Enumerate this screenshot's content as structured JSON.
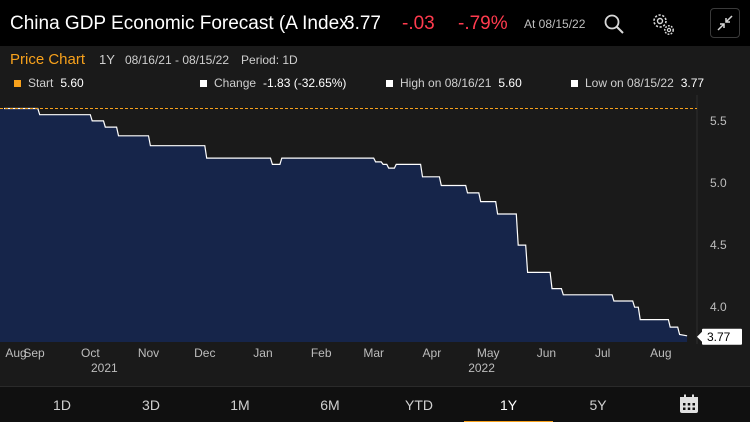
{
  "header": {
    "title": "China GDP Economic Forecast (A Index",
    "last": "3.77",
    "change": "-.03",
    "pct_change": "-.79%",
    "as_of": "At 08/15/22",
    "icons": [
      "search-icon",
      "settings-gears-icon",
      "collapse-icon"
    ]
  },
  "subheader": {
    "title": "Price Chart",
    "range": "1Y",
    "dates": "08/16/21 - 08/15/22",
    "period": "Period: 1D"
  },
  "stats": {
    "start_label": "Start",
    "start_value": "5.60",
    "change_label": "Change",
    "change_value": "-1.83 (-32.65%)",
    "high_label": "High on 08/16/21",
    "high_value": "5.60",
    "low_label": "Low on 08/15/22",
    "low_value": "3.77"
  },
  "colors": {
    "accent": "#f7a11c",
    "negative": "#ff3b4e",
    "area_fill": "#16254a",
    "line": "#ffffff",
    "panel_bg": "#1a1a1a"
  },
  "chart_data": {
    "type": "area",
    "x_tick_labels": [
      "Aug",
      "Sep",
      "Oct",
      "Nov",
      "Dec",
      "Jan",
      "Feb",
      "Mar",
      "Apr",
      "May",
      "Jun",
      "Jul",
      "Aug"
    ],
    "year_labels": [
      "2021",
      "2022"
    ],
    "y_tick_labels": [
      "4.0",
      "4.5",
      "5.0",
      "5.5"
    ],
    "ylim": [
      3.72,
      5.66
    ],
    "last_label": "3.77",
    "start_line_value": 5.6,
    "series": [
      {
        "x": [
          "2021-08-16",
          "2021-09-03",
          "2021-09-04",
          "2021-10-01",
          "2021-10-02",
          "2021-10-08",
          "2021-10-09",
          "2021-10-15",
          "2021-10-16",
          "2021-11-01",
          "2021-11-02",
          "2021-11-12",
          "2021-11-13",
          "2021-12-01",
          "2021-12-02",
          "2021-12-23",
          "2021-12-24",
          "2022-01-01",
          "2022-01-05",
          "2022-01-06",
          "2022-01-10",
          "2022-01-11",
          "2022-01-12",
          "2022-03-01",
          "2022-03-02",
          "2022-03-05",
          "2022-03-06",
          "2022-03-08",
          "2022-03-09",
          "2022-03-12",
          "2022-03-13",
          "2022-03-26",
          "2022-03-27",
          "2022-04-05",
          "2022-04-06",
          "2022-04-19",
          "2022-04-20",
          "2022-04-26",
          "2022-04-27",
          "2022-05-05",
          "2022-05-06",
          "2022-05-16",
          "2022-05-17",
          "2022-05-21",
          "2022-05-22",
          "2022-06-03",
          "2022-06-04",
          "2022-06-09",
          "2022-06-10",
          "2022-06-14",
          "2022-06-15",
          "2022-07-06",
          "2022-07-07",
          "2022-07-17",
          "2022-07-18",
          "2022-07-20",
          "2022-07-21",
          "2022-08-05",
          "2022-08-06",
          "2022-08-10",
          "2022-08-11",
          "2022-08-15"
        ],
        "y": [
          5.6,
          5.6,
          5.55,
          5.55,
          5.5,
          5.5,
          5.45,
          5.45,
          5.38,
          5.38,
          5.3,
          5.3,
          5.3,
          5.3,
          5.2,
          5.2,
          5.2,
          5.2,
          5.2,
          5.15,
          5.15,
          5.2,
          5.2,
          5.2,
          5.17,
          5.17,
          5.15,
          5.15,
          5.12,
          5.12,
          5.15,
          5.15,
          5.05,
          5.05,
          4.98,
          4.98,
          4.92,
          4.92,
          4.85,
          4.85,
          4.75,
          4.75,
          4.5,
          4.5,
          4.28,
          4.28,
          4.15,
          4.15,
          4.1,
          4.1,
          4.1,
          4.1,
          4.05,
          4.05,
          4.0,
          4.0,
          3.9,
          3.9,
          3.84,
          3.84,
          3.78,
          3.77
        ]
      }
    ]
  },
  "timeframe_tabs": [
    "1D",
    "3D",
    "1M",
    "6M",
    "YTD",
    "1Y",
    "5Y"
  ],
  "active_tab": "1Y"
}
